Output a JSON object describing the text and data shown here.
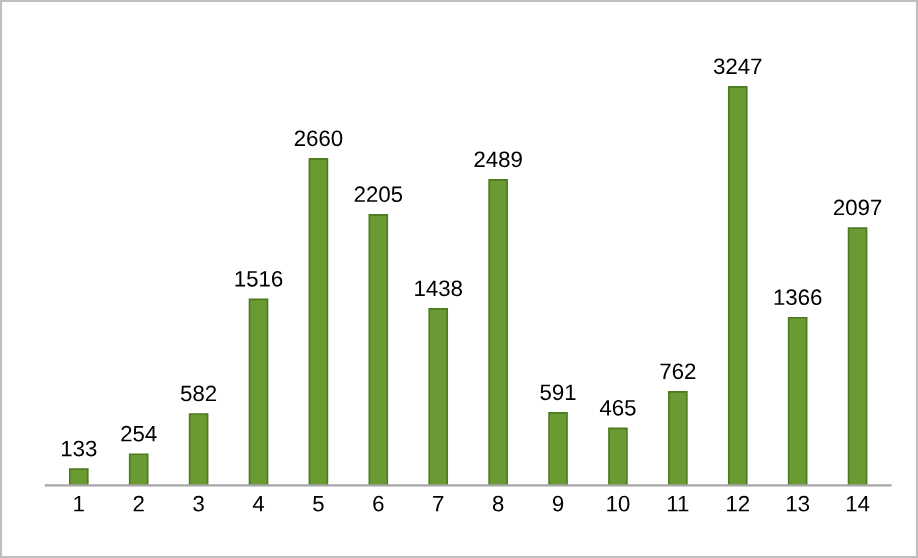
{
  "chart_data": {
    "type": "bar",
    "categories": [
      "1",
      "2",
      "3",
      "4",
      "5",
      "6",
      "7",
      "8",
      "9",
      "10",
      "11",
      "12",
      "13",
      "14"
    ],
    "values": [
      133,
      254,
      582,
      1516,
      2660,
      2205,
      1438,
      2489,
      591,
      465,
      762,
      3247,
      1366,
      2097
    ],
    "color": "#6a9a32",
    "data_labels": true,
    "grid": false,
    "legend": false
  }
}
